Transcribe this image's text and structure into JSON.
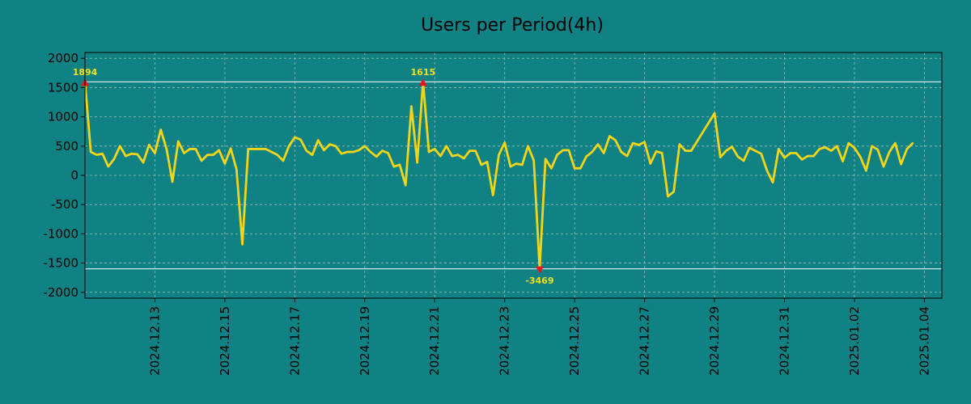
{
  "chart_data": {
    "type": "line",
    "title": "Users per Period(4h)",
    "xlabel": "",
    "ylabel": "",
    "ylim": [
      -2100,
      2100
    ],
    "yticks": [
      2000,
      1500,
      1000,
      500,
      0,
      -500,
      -1000,
      -1500,
      -2000
    ],
    "ytick_labels": [
      "2000",
      "1500",
      "1000",
      "500",
      "0",
      "-500",
      "-1000",
      "-1500",
      "-2000"
    ],
    "x_start": "2024.12.11 00:00",
    "x_step_hours": 4,
    "x_end": "2025.01.04 12:00",
    "xticks": [
      "2024.12.13",
      "2024.12.15",
      "2024.12.17",
      "2024.12.19",
      "2024.12.21",
      "2024.12.23",
      "2024.12.25",
      "2024.12.27",
      "2024.12.29",
      "2024.12.31",
      "2025.01.02",
      "2025.01.04"
    ],
    "grid": true,
    "line_color": "#f2d51a",
    "background_color": "#108284",
    "reference_lines": [
      1600,
      -1600
    ],
    "series": [
      {
        "values": [
          1600,
          400,
          350,
          370,
          150,
          280,
          500,
          330,
          370,
          360,
          220,
          520,
          380,
          780,
          450,
          -110,
          580,
          380,
          450,
          450,
          250,
          350,
          350,
          430,
          200,
          460,
          100,
          -1180,
          450,
          450,
          450,
          450,
          400,
          350,
          250,
          500,
          650,
          610,
          420,
          350,
          600,
          430,
          530,
          500,
          370,
          400,
          400,
          430,
          500,
          400,
          320,
          420,
          380,
          150,
          180,
          -170,
          1180,
          220,
          1600,
          400,
          450,
          330,
          500,
          330,
          350,
          290,
          420,
          420,
          180,
          230,
          -340,
          350,
          560,
          150,
          200,
          180,
          500,
          250,
          -1600,
          280,
          120,
          350,
          430,
          430,
          120,
          120,
          320,
          400,
          530,
          380,
          670,
          600,
          400,
          330,
          550,
          520,
          570,
          200,
          410,
          380,
          -360,
          -280,
          530,
          420,
          420,
          580,
          740,
          900,
          1060,
          310,
          420,
          490,
          320,
          250,
          470,
          420,
          370,
          80,
          -120,
          450,
          300,
          380,
          380,
          270,
          330,
          330,
          450,
          480,
          420,
          500,
          240,
          550,
          470,
          320,
          80,
          500,
          440,
          150,
          400,
          550,
          190,
          450,
          550
        ]
      }
    ],
    "annotations": [
      {
        "label": "1894",
        "x_index": 0,
        "y": 1600,
        "marker": "up"
      },
      {
        "label": "1615",
        "x_index": 58,
        "y": 1600,
        "marker": "up"
      },
      {
        "label": "-3469",
        "x_index": 78,
        "y": -1600,
        "marker": "down"
      }
    ]
  }
}
